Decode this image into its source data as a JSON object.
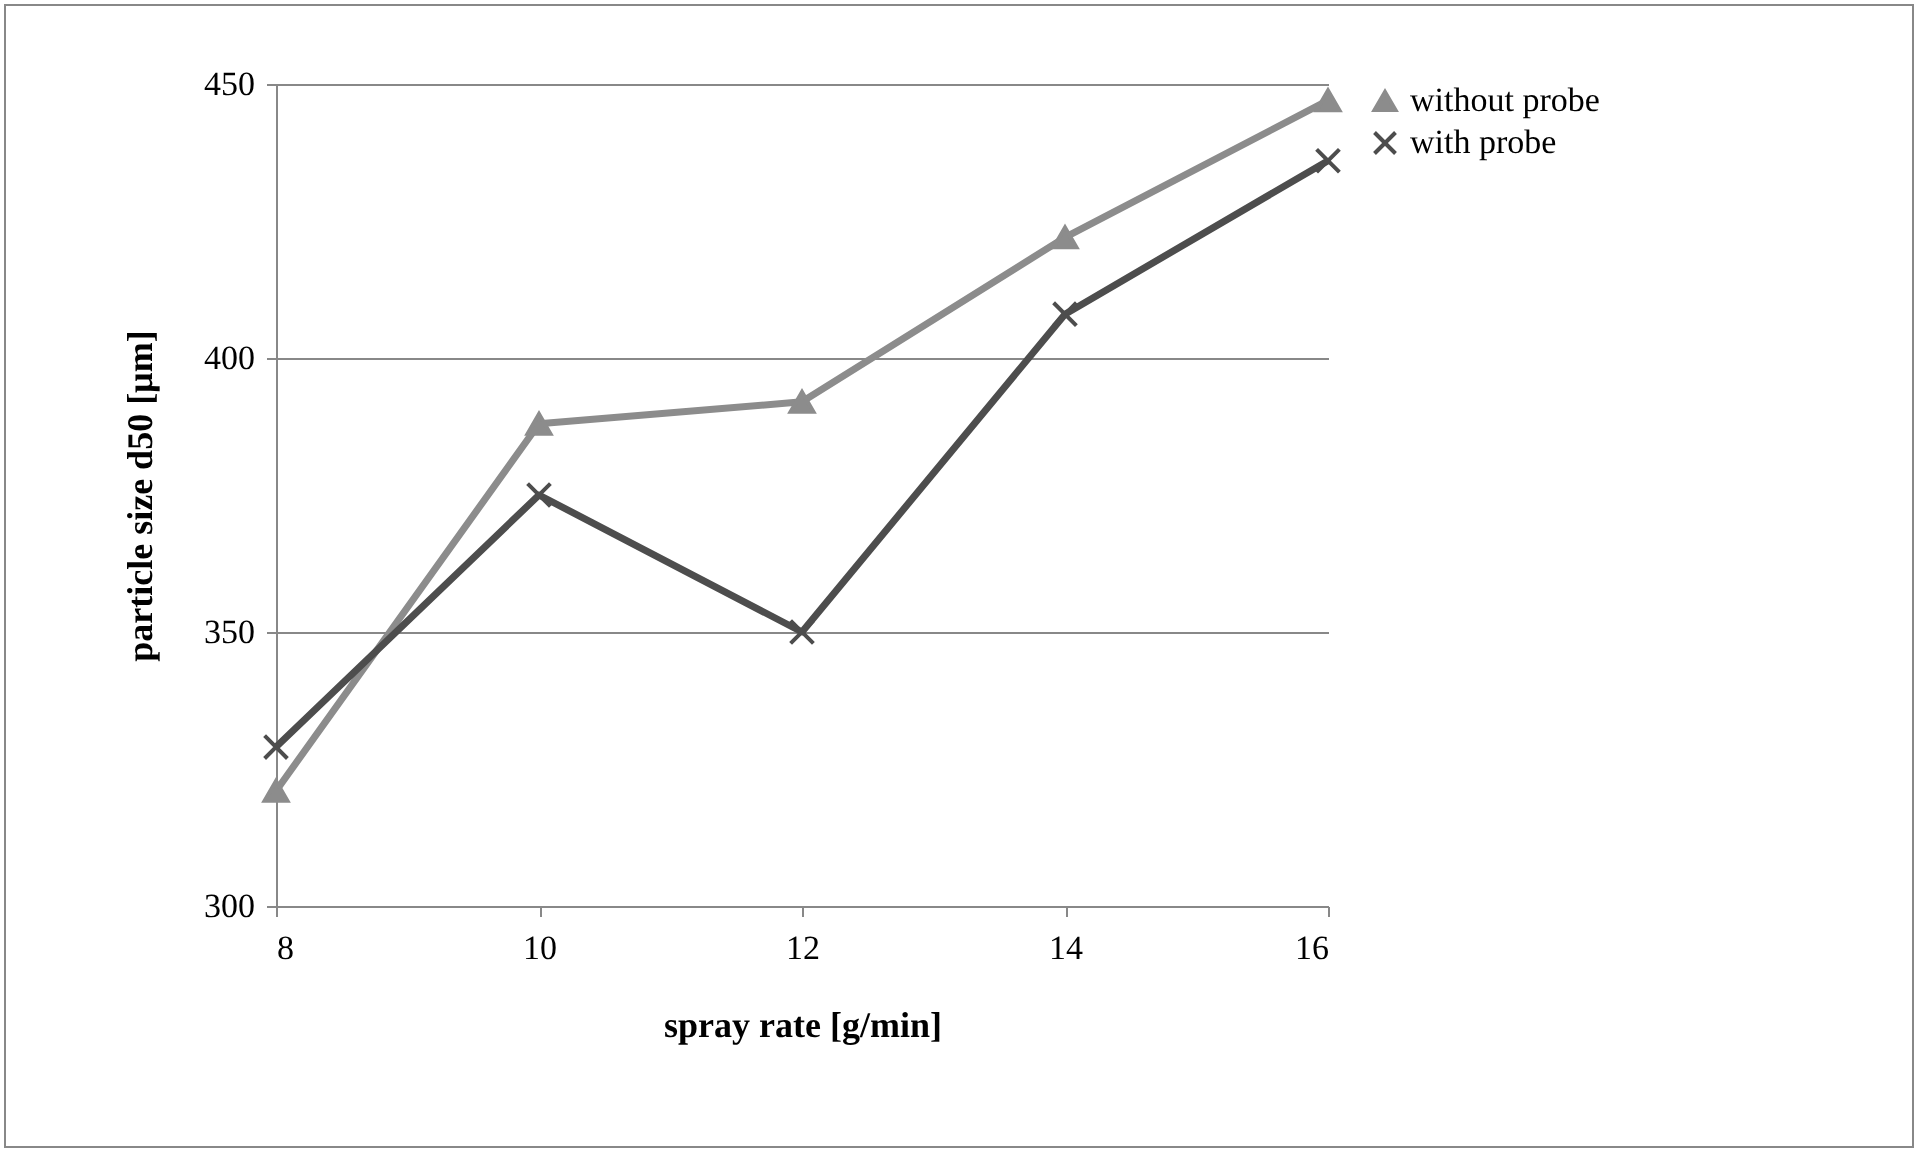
{
  "chart_data": {
    "type": "line",
    "xlabel": "spray rate [g/min]",
    "ylabel": "particle size d50 [µm]",
    "x": [
      8,
      10,
      12,
      14,
      16
    ],
    "series": [
      {
        "name": "without probe",
        "color": "#8c8c8c",
        "marker": "triangle",
        "values": [
          321,
          388,
          392,
          422,
          447
        ]
      },
      {
        "name": "with probe",
        "color": "#4d4d4d",
        "marker": "cross",
        "values": [
          329,
          375,
          350,
          408,
          436
        ]
      }
    ],
    "xlim": [
      8,
      16
    ],
    "xticks": [
      8,
      10,
      12,
      14,
      16
    ],
    "ylim": [
      300,
      450
    ],
    "yticks": [
      300,
      350,
      400,
      450
    ],
    "grid": "y",
    "legend": "right",
    "line_style": "solid"
  }
}
